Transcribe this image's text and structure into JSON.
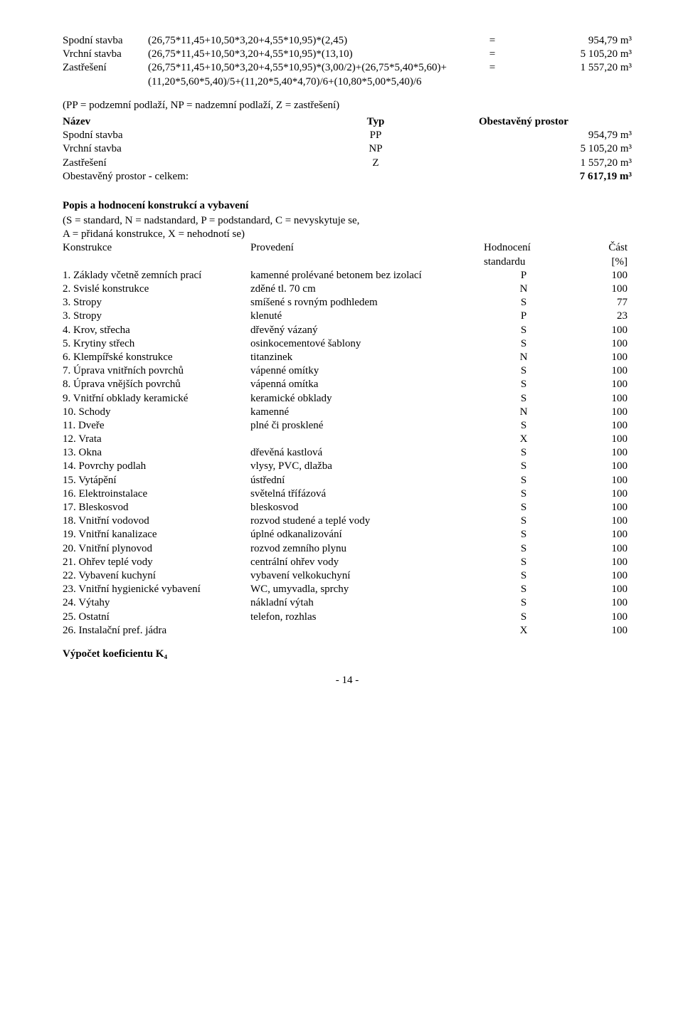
{
  "calc": {
    "rows": [
      {
        "label": "Spodní stavba",
        "formula": "(26,75*11,45+10,50*3,20+4,55*10,95)*(2,45)",
        "eq": "=",
        "value": "954,79 m³"
      },
      {
        "label": "Vrchní stavba",
        "formula": "(26,75*11,45+10,50*3,20+4,55*10,95)*(13,10)",
        "eq": "=",
        "value": "5 105,20 m³"
      },
      {
        "label": "Zastřešení",
        "formula": "(26,75*11,45+10,50*3,20+4,55*10,95)*(3,00/2)+(26,75*5,40*5,60)+(11,20*5,60*5,40)/5+(11,20*5,40*4,70)/6+(10,80*5,00*5,40)/6",
        "eq": "=",
        "value": "1 557,20 m³"
      }
    ],
    "note": "(PP = podzemní podlaží, NP = nadzemní podlaží, Z = zastřešení)"
  },
  "typTable": {
    "hdr": {
      "name": "Název",
      "typ": "Typ",
      "obest": "Obestavěný prostor"
    },
    "rows": [
      {
        "name": "Spodní stavba",
        "typ": "PP",
        "val": "954,79 m³"
      },
      {
        "name": "Vrchní stavba",
        "typ": "NP",
        "val": "5 105,20 m³"
      },
      {
        "name": "Zastřešení",
        "typ": "Z",
        "val": "1 557,20 m³"
      }
    ],
    "totalLabel": "Obestavěný prostor - celkem:",
    "totalVal": "7 617,19 m³"
  },
  "konstr": {
    "title": "Popis a hodnocení konstrukcí a vybavení",
    "legend1": "(S = standard, N = nadstandard, P = podstandard, C = nevyskytuje se,",
    "legend2": "A = přidaná konstrukce, X = nehodnotí se)",
    "hdr": {
      "c1": "Konstrukce",
      "c2": "Provedení",
      "c3": "Hodnocení",
      "c4": "Část"
    },
    "hdr2": {
      "c3": "standardu",
      "c4": "[%]"
    },
    "rows": [
      {
        "n": "1. Základy včetně zemních prací",
        "p": "kamenné prolévané betonem bez izolací",
        "h": "P",
        "pct": "100"
      },
      {
        "n": "2. Svislé konstrukce",
        "p": "zděné tl. 70 cm",
        "h": "N",
        "pct": "100"
      },
      {
        "n": "3. Stropy",
        "p": "smíšené s rovným podhledem",
        "h": "S",
        "pct": "77"
      },
      {
        "n": "3. Stropy",
        "p": "klenuté",
        "h": "P",
        "pct": "23"
      },
      {
        "n": "4. Krov, střecha",
        "p": "dřevěný vázaný",
        "h": "S",
        "pct": "100"
      },
      {
        "n": "5. Krytiny střech",
        "p": "osinkocementové šablony",
        "h": "S",
        "pct": "100"
      },
      {
        "n": "6. Klempířské konstrukce",
        "p": "titanzinek",
        "h": "N",
        "pct": "100"
      },
      {
        "n": "7. Úprava vnitřních povrchů",
        "p": "vápenné omítky",
        "h": "S",
        "pct": "100"
      },
      {
        "n": "8. Úprava vnějších povrchů",
        "p": "vápenná omítka",
        "h": "S",
        "pct": "100"
      },
      {
        "n": "9. Vnitřní obklady keramické",
        "p": "keramické obklady",
        "h": "S",
        "pct": "100"
      },
      {
        "n": "10. Schody",
        "p": "kamenné",
        "h": "N",
        "pct": "100"
      },
      {
        "n": "11. Dveře",
        "p": "plné či prosklené",
        "h": "S",
        "pct": "100"
      },
      {
        "n": "12. Vrata",
        "p": "",
        "h": "X",
        "pct": "100"
      },
      {
        "n": "13. Okna",
        "p": "dřevěná kastlová",
        "h": "S",
        "pct": "100"
      },
      {
        "n": "14. Povrchy podlah",
        "p": "vlysy, PVC, dlažba",
        "h": "S",
        "pct": "100"
      },
      {
        "n": "15. Vytápění",
        "p": "ústřední",
        "h": "S",
        "pct": "100"
      },
      {
        "n": "16. Elektroinstalace",
        "p": "světelná třífázová",
        "h": "S",
        "pct": "100"
      },
      {
        "n": "17. Bleskosvod",
        "p": "bleskosvod",
        "h": "S",
        "pct": "100"
      },
      {
        "n": "18. Vnitřní vodovod",
        "p": "rozvod studené a teplé vody",
        "h": "S",
        "pct": "100"
      },
      {
        "n": "19. Vnitřní kanalizace",
        "p": "úplné odkanalizování",
        "h": "S",
        "pct": "100"
      },
      {
        "n": "20. Vnitřní plynovod",
        "p": "rozvod zemního plynu",
        "h": "S",
        "pct": "100"
      },
      {
        "n": "21. Ohřev teplé vody",
        "p": "centrální ohřev vody",
        "h": "S",
        "pct": "100"
      },
      {
        "n": "22. Vybavení kuchyní",
        "p": "vybavení velkokuchyní",
        "h": "S",
        "pct": "100"
      },
      {
        "n": "23. Vnitřní hygienické vybavení",
        "p": "WC, umyvadla, sprchy",
        "h": "S",
        "pct": "100"
      },
      {
        "n": "24. Výtahy",
        "p": "nákladní výtah",
        "h": "S",
        "pct": "100"
      },
      {
        "n": "25. Ostatní",
        "p": "telefon, rozhlas",
        "h": "S",
        "pct": "100"
      },
      {
        "n": "26. Instalační pref. jádra",
        "p": "",
        "h": "X",
        "pct": "100"
      }
    ]
  },
  "k4": "Výpočet koeficientu K₄",
  "pageNum": "- 14 -"
}
